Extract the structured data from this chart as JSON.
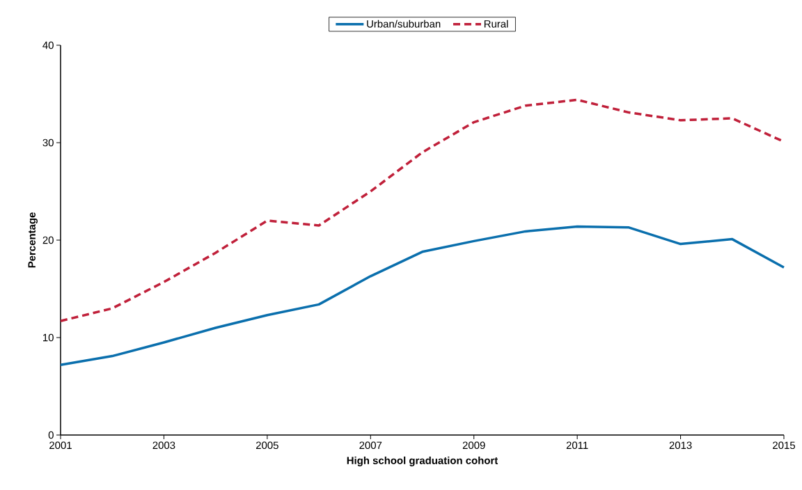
{
  "chart_data": {
    "type": "line",
    "xlabel": "High school graduation cohort",
    "ylabel": "Percentage",
    "x": [
      2001,
      2002,
      2003,
      2004,
      2005,
      2006,
      2007,
      2008,
      2009,
      2010,
      2011,
      2012,
      2013,
      2014,
      2015
    ],
    "xlim": [
      2001,
      2015
    ],
    "ylim": [
      0,
      40
    ],
    "xticks": [
      2001,
      2003,
      2005,
      2007,
      2009,
      2011,
      2013,
      2015
    ],
    "yticks": [
      0,
      10,
      20,
      30,
      40
    ],
    "legend": "top",
    "series": [
      {
        "name": "Urban/suburban",
        "color": "#0a6fad",
        "line_style": "solid",
        "values": [
          7.2,
          8.1,
          9.5,
          11.0,
          12.3,
          13.4,
          16.3,
          18.8,
          19.9,
          20.9,
          21.4,
          21.3,
          19.6,
          20.1,
          17.2
        ]
      },
      {
        "name": "Rural",
        "color": "#c0203a",
        "line_style": "dashed",
        "values": [
          11.7,
          13.0,
          15.7,
          18.7,
          22.0,
          21.5,
          25.0,
          29.0,
          32.1,
          33.8,
          34.4,
          33.1,
          32.3,
          32.5,
          30.1
        ]
      }
    ]
  }
}
